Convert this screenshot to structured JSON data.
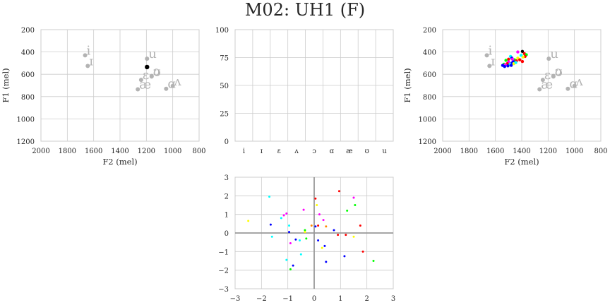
{
  "figure": {
    "title": "M02: UH1 (F)"
  },
  "chart_data": [
    {
      "id": "formant-single",
      "type": "scatter",
      "xlabel": "F2 (mel)",
      "ylabel": "F1 (mel)",
      "xlim": [
        2000,
        800
      ],
      "ylim": [
        1200,
        200
      ],
      "xticks": [
        2000,
        1800,
        1600,
        1400,
        1200,
        1000,
        800
      ],
      "yticks": [
        200,
        400,
        600,
        800,
        1000,
        1200
      ],
      "grid": true,
      "reference_vowels": [
        {
          "label": "i",
          "x": 1665,
          "y": 430
        },
        {
          "label": "ɪ",
          "x": 1645,
          "y": 525
        },
        {
          "label": "u",
          "x": 1195,
          "y": 460
        },
        {
          "label": "ʊ",
          "x": 1160,
          "y": 620
        },
        {
          "label": "ɛ",
          "x": 1240,
          "y": 650
        },
        {
          "label": "ɔ",
          "x": 1160,
          "y": 615
        },
        {
          "label": "æ",
          "x": 1265,
          "y": 735
        },
        {
          "label": "ɑ",
          "x": 1050,
          "y": 730
        },
        {
          "label": "ʌ",
          "x": 1000,
          "y": 705
        }
      ],
      "highlight": {
        "x": 1195,
        "y": 535,
        "color": "#000000"
      }
    },
    {
      "id": "vowel-scores",
      "type": "bar",
      "categories": [
        "i",
        "ɪ",
        "ɛ",
        "ʌ",
        "ɔ",
        "ɑ",
        "æ",
        "ʊ",
        "u"
      ],
      "values": [
        0,
        0,
        0,
        0,
        0,
        0,
        0,
        0,
        0
      ],
      "ylim": [
        0,
        100
      ],
      "yticks": [
        0,
        25,
        50,
        75,
        100
      ],
      "grid": true
    },
    {
      "id": "formant-tokens",
      "type": "scatter",
      "xlabel": "F2 (mel)",
      "ylabel": "F1 (mel)",
      "xlim": [
        2000,
        800
      ],
      "ylim": [
        1200,
        200
      ],
      "xticks": [
        2000,
        1800,
        1600,
        1400,
        1200,
        1000,
        800
      ],
      "yticks": [
        200,
        400,
        600,
        800,
        1000,
        1200
      ],
      "grid": true,
      "reference_vowels": [
        {
          "label": "i",
          "x": 1665,
          "y": 430
        },
        {
          "label": "ɪ",
          "x": 1645,
          "y": 525
        },
        {
          "label": "u",
          "x": 1195,
          "y": 460
        },
        {
          "label": "ʊ",
          "x": 1160,
          "y": 620
        },
        {
          "label": "ɛ",
          "x": 1240,
          "y": 650
        },
        {
          "label": "ɔ",
          "x": 1160,
          "y": 615
        },
        {
          "label": "æ",
          "x": 1265,
          "y": 735
        },
        {
          "label": "ɑ",
          "x": 1050,
          "y": 730
        },
        {
          "label": "ʌ",
          "x": 1000,
          "y": 705
        }
      ],
      "points": [
        {
          "x": 1395,
          "y": 395,
          "color": "#000000"
        },
        {
          "x": 1430,
          "y": 400,
          "color": "#ff00ff"
        },
        {
          "x": 1380,
          "y": 415,
          "color": "#ff0000"
        },
        {
          "x": 1365,
          "y": 425,
          "color": "#00ff00"
        },
        {
          "x": 1375,
          "y": 440,
          "color": "#ff0000"
        },
        {
          "x": 1390,
          "y": 445,
          "color": "#ffff00"
        },
        {
          "x": 1405,
          "y": 430,
          "color": "#00ffff"
        },
        {
          "x": 1485,
          "y": 440,
          "color": "#00ffff"
        },
        {
          "x": 1475,
          "y": 455,
          "color": "#0000ff"
        },
        {
          "x": 1500,
          "y": 465,
          "color": "#ff0000"
        },
        {
          "x": 1455,
          "y": 470,
          "color": "#00ff00"
        },
        {
          "x": 1430,
          "y": 455,
          "color": "#ffff00"
        },
        {
          "x": 1440,
          "y": 480,
          "color": "#ff0000"
        },
        {
          "x": 1465,
          "y": 485,
          "color": "#0000ff"
        },
        {
          "x": 1520,
          "y": 475,
          "color": "#00ff00"
        },
        {
          "x": 1500,
          "y": 490,
          "color": "#ff00ff"
        },
        {
          "x": 1475,
          "y": 500,
          "color": "#0000ff"
        },
        {
          "x": 1460,
          "y": 505,
          "color": "#ffff00"
        },
        {
          "x": 1490,
          "y": 510,
          "color": "#00ffff"
        },
        {
          "x": 1510,
          "y": 505,
          "color": "#ff0000"
        },
        {
          "x": 1535,
          "y": 510,
          "color": "#00ff00"
        },
        {
          "x": 1525,
          "y": 515,
          "color": "#ff00ff"
        },
        {
          "x": 1545,
          "y": 520,
          "color": "#0000ff"
        },
        {
          "x": 1480,
          "y": 520,
          "color": "#0000ff"
        },
        {
          "x": 1505,
          "y": 525,
          "color": "#0000ff"
        },
        {
          "x": 1530,
          "y": 530,
          "color": "#0000ff"
        },
        {
          "x": 1415,
          "y": 470,
          "color": "#ff0000"
        },
        {
          "x": 1395,
          "y": 485,
          "color": "#ff0000"
        },
        {
          "x": 1445,
          "y": 495,
          "color": "#00ffff"
        },
        {
          "x": 1470,
          "y": 465,
          "color": "#ff00ff"
        }
      ]
    },
    {
      "id": "normalized-scatter",
      "type": "scatter",
      "xlim": [
        -3,
        3
      ],
      "ylim": [
        -3,
        3
      ],
      "xticks": [
        -3,
        -2,
        -1,
        0,
        1,
        2,
        3
      ],
      "yticks": [
        -3,
        -2,
        -1,
        0,
        1,
        2,
        3
      ],
      "grid": true,
      "points": [
        {
          "x": -2.5,
          "y": 0.65,
          "color": "#ffff00"
        },
        {
          "x": -1.7,
          "y": 1.95,
          "color": "#00ffff"
        },
        {
          "x": -1.65,
          "y": 0.45,
          "color": "#0000ff"
        },
        {
          "x": -1.6,
          "y": -0.2,
          "color": "#00ffff"
        },
        {
          "x": -1.25,
          "y": 0.8,
          "color": "#00ffff"
        },
        {
          "x": -1.15,
          "y": 0.95,
          "color": "#ff00ff"
        },
        {
          "x": -1.05,
          "y": 1.05,
          "color": "#ff00ff"
        },
        {
          "x": -1.05,
          "y": -1.45,
          "color": "#00ffff"
        },
        {
          "x": -0.95,
          "y": 0.4,
          "color": "#00ffff"
        },
        {
          "x": -0.95,
          "y": 0.05,
          "color": "#0000ff"
        },
        {
          "x": -0.9,
          "y": -0.55,
          "color": "#ff00ff"
        },
        {
          "x": -0.9,
          "y": -1.95,
          "color": "#00ff00"
        },
        {
          "x": -0.8,
          "y": -1.75,
          "color": "#0000ff"
        },
        {
          "x": -0.7,
          "y": -0.35,
          "color": "#0000ff"
        },
        {
          "x": -0.55,
          "y": -0.4,
          "color": "#00ffff"
        },
        {
          "x": -0.5,
          "y": -1.15,
          "color": "#00ffff"
        },
        {
          "x": -0.4,
          "y": 1.25,
          "color": "#ff00ff"
        },
        {
          "x": -0.35,
          "y": 0.15,
          "color": "#00ff00"
        },
        {
          "x": -0.35,
          "y": 0.05,
          "color": "#ffff00"
        },
        {
          "x": -0.3,
          "y": -0.3,
          "color": "#00ff00"
        },
        {
          "x": -0.1,
          "y": 0.4,
          "color": "#ff8800"
        },
        {
          "x": 0.05,
          "y": 1.85,
          "color": "#ff0000"
        },
        {
          "x": 0.05,
          "y": 0.35,
          "color": "#0000ff"
        },
        {
          "x": 0.1,
          "y": 1.5,
          "color": "#ffff00"
        },
        {
          "x": 0.15,
          "y": 0.4,
          "color": "#ff0000"
        },
        {
          "x": 0.15,
          "y": -0.4,
          "color": "#0000ff"
        },
        {
          "x": 0.2,
          "y": 1.0,
          "color": "#ff00ff"
        },
        {
          "x": 0.3,
          "y": -0.8,
          "color": "#ffff00"
        },
        {
          "x": 0.35,
          "y": 0.7,
          "color": "#ff00ff"
        },
        {
          "x": 0.4,
          "y": -0.7,
          "color": "#0000ff"
        },
        {
          "x": 0.45,
          "y": -1.55,
          "color": "#0000ff"
        },
        {
          "x": 0.45,
          "y": 0.35,
          "color": "#ff8800"
        },
        {
          "x": 0.75,
          "y": 0.15,
          "color": "#0000ff"
        },
        {
          "x": 0.9,
          "y": -0.1,
          "color": "#ff0000"
        },
        {
          "x": 0.95,
          "y": 2.25,
          "color": "#ff0000"
        },
        {
          "x": 1.15,
          "y": -1.25,
          "color": "#0000ff"
        },
        {
          "x": 1.2,
          "y": -0.1,
          "color": "#ff0000"
        },
        {
          "x": 1.25,
          "y": 1.2,
          "color": "#00ff00"
        },
        {
          "x": 1.5,
          "y": 1.9,
          "color": "#ff00ff"
        },
        {
          "x": 1.5,
          "y": -0.2,
          "color": "#ffff00"
        },
        {
          "x": 1.55,
          "y": 1.5,
          "color": "#00ff00"
        },
        {
          "x": 1.75,
          "y": 0.4,
          "color": "#ff0000"
        },
        {
          "x": 1.85,
          "y": -1.0,
          "color": "#ff0000"
        },
        {
          "x": 2.25,
          "y": -1.5,
          "color": "#00ff00"
        }
      ]
    }
  ]
}
